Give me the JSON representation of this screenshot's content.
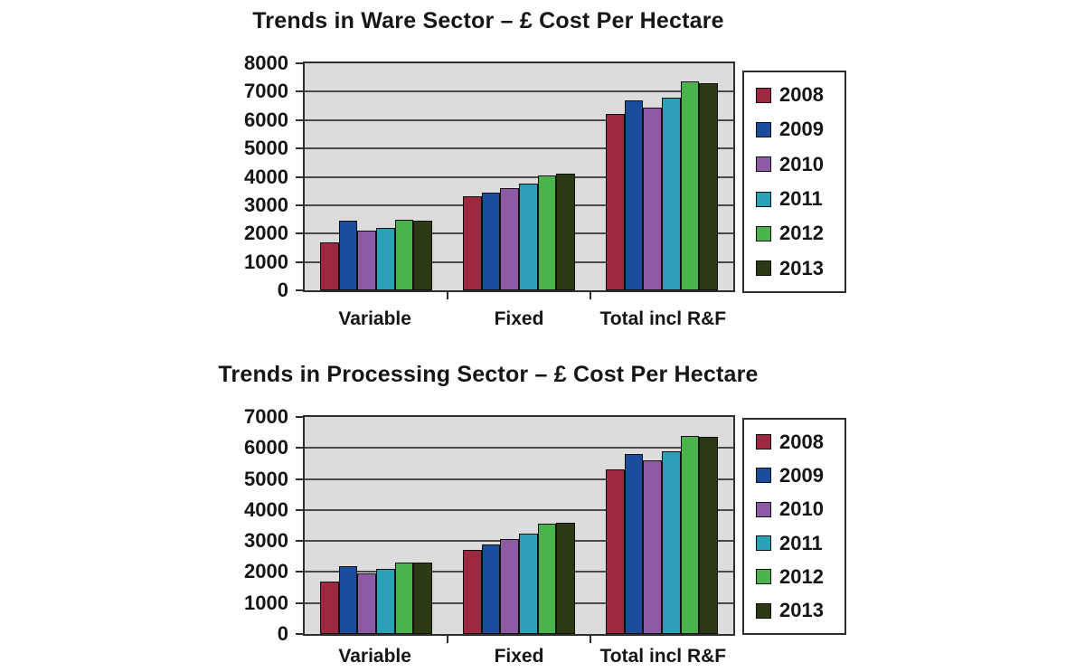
{
  "colors": {
    "page-bg": "#ffffff",
    "plot-bg": "#dcdcdc",
    "grid-line": "#4a4a4a",
    "frame-border": "#2e2e2e",
    "axis-text": "#161616"
  },
  "chart_data": [
    {
      "type": "bar",
      "title": "Trends in Ware Sector – £ Cost Per Hectare",
      "categories": [
        "Variable",
        "Fixed",
        "Total incl R&F"
      ],
      "series": [
        {
          "name": "2008",
          "color": "#9e2840",
          "values": [
            1700,
            3300,
            6200
          ]
        },
        {
          "name": "2009",
          "color": "#1c4d9d",
          "values": [
            2450,
            3450,
            6700
          ]
        },
        {
          "name": "2010",
          "color": "#8d5ba6",
          "values": [
            2100,
            3600,
            6450
          ]
        },
        {
          "name": "2011",
          "color": "#2ca0b6",
          "values": [
            2200,
            3750,
            6800
          ]
        },
        {
          "name": "2012",
          "color": "#4ab34d",
          "values": [
            2500,
            4050,
            7350
          ]
        },
        {
          "name": "2013",
          "color": "#2b3a13",
          "values": [
            2450,
            4100,
            7300
          ]
        }
      ],
      "ylim": [
        0,
        8000
      ],
      "ytick_step": 1000,
      "xlabel": "",
      "ylabel": "",
      "grid": true,
      "legend_position": "right"
    },
    {
      "type": "bar",
      "title": "Trends in Processing Sector – £ Cost Per Hectare",
      "categories": [
        "Variable",
        "Fixed",
        "Total incl R&F"
      ],
      "series": [
        {
          "name": "2008",
          "color": "#9e2840",
          "values": [
            1700,
            2700,
            5300
          ]
        },
        {
          "name": "2009",
          "color": "#1c4d9d",
          "values": [
            2200,
            2900,
            5800
          ]
        },
        {
          "name": "2010",
          "color": "#8d5ba6",
          "values": [
            1950,
            3050,
            5600
          ]
        },
        {
          "name": "2011",
          "color": "#2ca0b6",
          "values": [
            2100,
            3250,
            5900
          ]
        },
        {
          "name": "2012",
          "color": "#4ab34d",
          "values": [
            2300,
            3550,
            6400
          ]
        },
        {
          "name": "2013",
          "color": "#2b3a13",
          "values": [
            2300,
            3600,
            6350
          ]
        }
      ],
      "ylim": [
        0,
        7000
      ],
      "ytick_step": 1000,
      "xlabel": "",
      "ylabel": "",
      "grid": true,
      "legend_position": "right"
    }
  ]
}
